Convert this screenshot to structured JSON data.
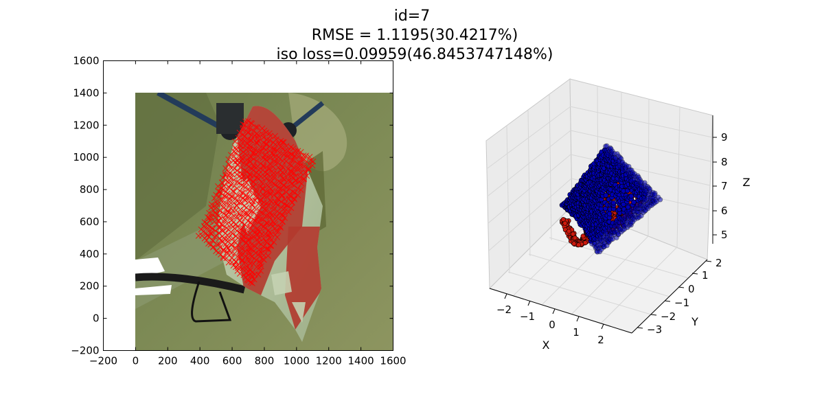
{
  "figure": {
    "title_lines": [
      "id=7",
      "RMSE = 1.1195(30.4217%)",
      "iso loss=0.09959(46.8453747148%)"
    ]
  },
  "chart_data": [
    {
      "type": "image",
      "xlim": [
        -200,
        1600
      ],
      "ylim": [
        1600,
        -200
      ],
      "image_extent": [
        0,
        1600,
        1600,
        0
      ],
      "x_ticks": [
        -200,
        0,
        200,
        400,
        600,
        800,
        1000,
        1200,
        1400,
        1600
      ],
      "y_ticks": [
        -200,
        0,
        200,
        400,
        600,
        800,
        1000,
        1200,
        1400,
        1600
      ],
      "x_tick_labels": [
        "−200",
        "0",
        "200",
        "400",
        "600",
        "800",
        "1000",
        "1200",
        "1400",
        "1600"
      ],
      "y_tick_labels": [
        "−200",
        "0",
        "200",
        "400",
        "600",
        "800",
        "1000",
        "1200",
        "1400",
        "1600"
      ],
      "overlay": {
        "marker": "x",
        "color": "#ff0000",
        "grid_quad": [
          [
            400,
            520
          ],
          [
            730,
            210
          ],
          [
            1110,
            980
          ],
          [
            680,
            1230
          ]
        ]
      }
    },
    {
      "type": "scatter3d",
      "x_ticks": [
        -2,
        -1,
        0,
        1,
        2
      ],
      "y_ticks": [
        -3,
        -2,
        -1,
        0,
        1,
        2
      ],
      "z_ticks": [
        5,
        6,
        7,
        8,
        9
      ],
      "x_tick_labels": [
        "−2",
        "−1",
        "0",
        "1",
        "2"
      ],
      "y_tick_labels": [
        "−3",
        "−2",
        "−1",
        "0",
        "1",
        "2"
      ],
      "z_tick_labels": [
        "5",
        "6",
        "7",
        "8",
        "9"
      ],
      "xlabel": "X",
      "ylabel": "Y",
      "zlabel": "Z",
      "series": [
        {
          "color": "#0000b4",
          "edge_color": "#000000"
        },
        {
          "color": "#cc1a0e",
          "edge_color": "#000000"
        }
      ]
    }
  ]
}
